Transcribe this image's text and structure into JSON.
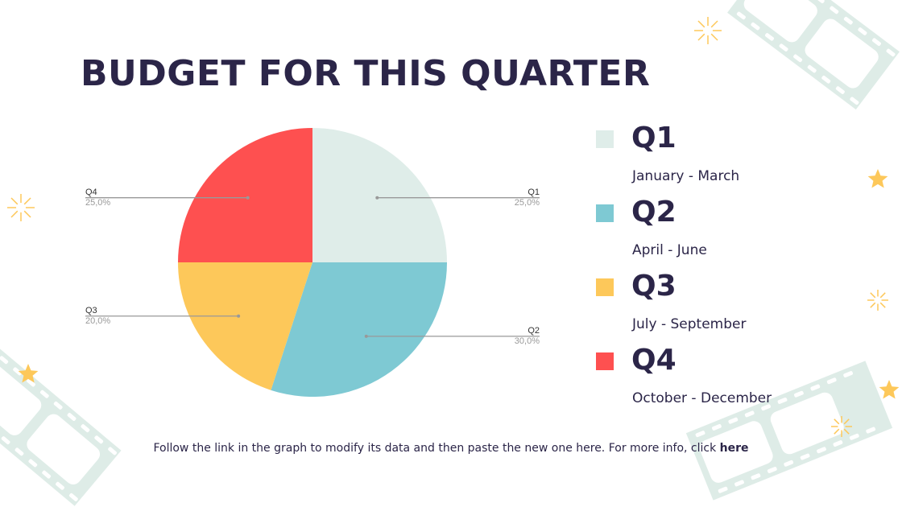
{
  "title": "BUDGET FOR THIS QUARTER",
  "chart_data": {
    "type": "pie",
    "categories": [
      "Q1",
      "Q2",
      "Q3",
      "Q4"
    ],
    "values": [
      25.0,
      30.0,
      20.0,
      25.0
    ],
    "data_labels": [
      "25,0%",
      "30,0%",
      "20,0%",
      "25,0%"
    ],
    "colors": [
      "#dfede9",
      "#7ec9d3",
      "#fdc85a",
      "#fe5050"
    ],
    "start_angle": "top, clockwise",
    "legend_placement": "right"
  },
  "legend": [
    {
      "label": "Q1",
      "description": "January - March"
    },
    {
      "label": "Q2",
      "description": "April - June"
    },
    {
      "label": "Q3",
      "description": "July - September"
    },
    {
      "label": "Q4",
      "description": "October - December"
    }
  ],
  "footer": {
    "text": "Follow the link in the graph to modify its data and then paste the new one here. For more info, click ",
    "link": "here"
  },
  "decoration": {
    "film_color": "#deece7",
    "star_color": "#fdc85a"
  }
}
